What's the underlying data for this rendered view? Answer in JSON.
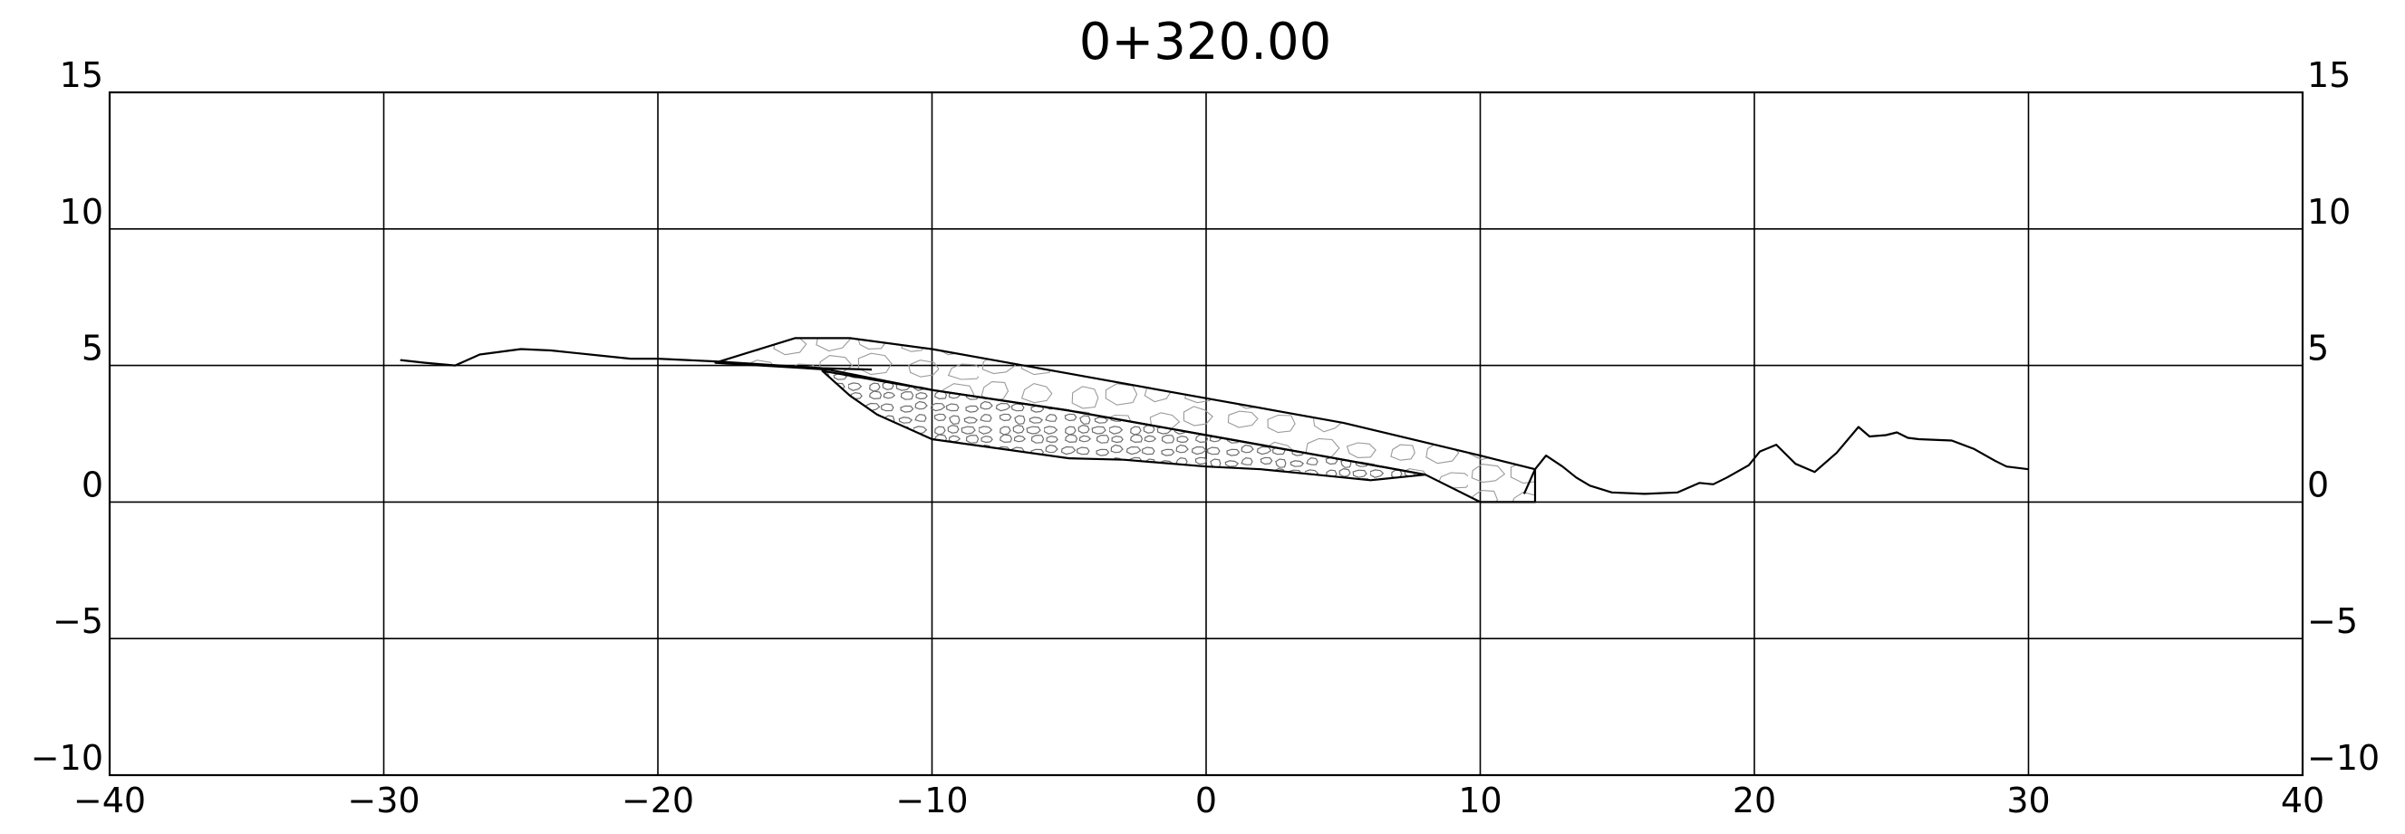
{
  "chart_data": {
    "type": "line",
    "title": "0+320.00",
    "xlabel": "",
    "ylabel": "",
    "xlim": [
      -40,
      40
    ],
    "ylim": [
      -10,
      15
    ],
    "grid": true,
    "x_ticks": [
      -40,
      -30,
      -20,
      -10,
      0,
      10,
      20,
      30,
      40
    ],
    "y_ticks": [
      -10,
      -5,
      0,
      5,
      10,
      15
    ],
    "x_tick_labels": [
      "−40",
      "−30",
      "−20",
      "−10",
      "0",
      "10",
      "20",
      "30",
      "40"
    ],
    "y_tick_labels": [
      "−10",
      "−5",
      "0",
      "5",
      "10",
      "15"
    ],
    "series": [
      {
        "role": "existing-ground-left",
        "x": [
          -29.4,
          -28.5,
          -27.4,
          -26.5,
          -25.0,
          -23.9,
          -22.0,
          -21.0,
          -20.0,
          -17.9,
          -14.0,
          -12.2
        ],
        "y": [
          5.2,
          5.1,
          5.0,
          5.4,
          5.6,
          5.55,
          5.35,
          5.25,
          5.25,
          5.15,
          4.9,
          4.85
        ]
      },
      {
        "role": "existing-ground-right",
        "x": [
          11.6,
          12.0,
          12.4,
          13.0,
          13.5,
          14.0,
          14.8,
          16.0,
          17.2,
          18.0,
          18.5,
          19.0,
          19.8,
          20.2,
          20.8,
          21.5,
          22.2,
          23.0,
          23.8,
          24.2,
          24.8,
          25.2,
          25.6,
          26.0,
          27.2,
          28.0,
          28.8,
          29.2,
          30.0
        ],
        "y": [
          0.3,
          1.2,
          1.7,
          1.3,
          0.9,
          0.6,
          0.35,
          0.3,
          0.35,
          0.7,
          0.65,
          0.9,
          1.35,
          1.85,
          2.1,
          1.4,
          1.1,
          1.8,
          2.75,
          2.4,
          2.45,
          2.55,
          2.35,
          2.3,
          2.25,
          1.95,
          1.5,
          1.3,
          1.2
        ]
      },
      {
        "role": "rockfill-upper-outline",
        "x": [
          -17.9,
          -15.0,
          -13.0,
          -10.0,
          -5.0,
          0.0,
          5.0,
          10.0,
          12.0,
          12.0,
          10.0,
          8.0,
          5.0,
          0.0,
          -5.0,
          -10.0,
          -13.8,
          -17.9
        ],
        "y": [
          5.1,
          6.0,
          6.0,
          5.6,
          4.7,
          3.8,
          2.9,
          1.7,
          1.2,
          0.0,
          0.0,
          1.0,
          1.55,
          2.45,
          3.35,
          4.1,
          4.85,
          5.1
        ]
      },
      {
        "role": "rockfill-lower-outline",
        "x": [
          -14.0,
          -13.0,
          -12.0,
          -10.0,
          -5.0,
          -3.0,
          0.0,
          2.0,
          4.0,
          6.0,
          7.5,
          8.0,
          5.0,
          0.0,
          -5.0,
          -10.0,
          -14.0
        ],
        "y": [
          4.8,
          3.9,
          3.2,
          2.3,
          1.6,
          1.55,
          1.3,
          1.2,
          1.0,
          0.8,
          0.95,
          1.0,
          1.55,
          2.45,
          3.35,
          4.1,
          4.8
        ]
      }
    ]
  }
}
